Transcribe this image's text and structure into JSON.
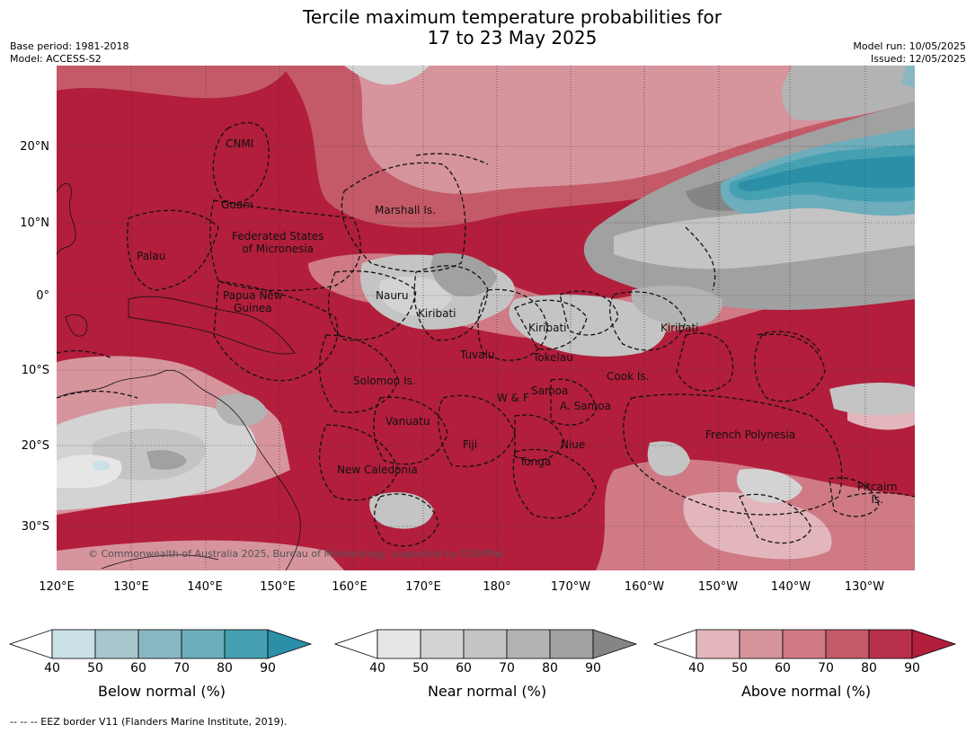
{
  "header": {
    "title_line1": "Tercile maximum temperature probabilities for",
    "title_line2": "17 to 23 May 2025",
    "base_period": "Base period: 1981-2018",
    "model": "Model: ACCESS-S2",
    "model_run": "Model run: 10/05/2025",
    "issued": "Issued: 12/05/2025"
  },
  "axes": {
    "lat_labels": [
      "20°N",
      "10°N",
      "0°",
      "10°S",
      "20°S",
      "30°S"
    ],
    "lon_labels": [
      "120°E",
      "130°E",
      "140°E",
      "150°E",
      "160°E",
      "170°E",
      "180°",
      "170°W",
      "160°W",
      "150°W",
      "140°W",
      "130°W"
    ]
  },
  "places": {
    "cnmi": "CNMI",
    "guam": "Guam",
    "marshall": "Marshall Is.",
    "fsm_1": "Federated States",
    "fsm_2": "of Micronesia",
    "palau": "Palau",
    "png_1": "Papua New",
    "png_2": "Guinea",
    "nauru": "Nauru",
    "kiribati_w": "Kiribati",
    "kiribati_c": "Kiribati",
    "kiribati_e": "Kiribati",
    "tuvalu": "Tuvalu",
    "tokelau": "Tokelau",
    "cook": "Cook Is.",
    "solomon": "Solomon Is.",
    "samoa": "Samoa",
    "wf": "W & F",
    "asamoa": "A. Samoa",
    "vanuatu": "Vanuatu",
    "fiji": "Fiji",
    "niue": "Niue",
    "tonga": "Tonga",
    "french_polynesia": "French Polynesia",
    "new_caledonia": "New Caledonia",
    "pitcairn_1": "Pitcairn",
    "pitcairn_2": "Is."
  },
  "copyright": "© Commonwealth of Australia 2025, Bureau of Meteorology, supported by COSPPac",
  "colorbars": [
    {
      "label": "Below normal (%)",
      "ticks": [
        "40",
        "50",
        "60",
        "70",
        "80",
        "90"
      ],
      "colors": [
        "#c9e1e7",
        "#a7c7cd",
        "#89b7c1",
        "#6dadbc",
        "#45a1b2",
        "#2b8fa7"
      ]
    },
    {
      "label": "Near normal (%)",
      "ticks": [
        "40",
        "50",
        "60",
        "70",
        "80",
        "90"
      ],
      "colors": [
        "#e6e6e6",
        "#d3d3d3",
        "#c4c4c4",
        "#b3b3b3",
        "#a1a1a1",
        "#858585"
      ]
    },
    {
      "label": "Above normal (%)",
      "ticks": [
        "40",
        "50",
        "60",
        "70",
        "80",
        "90"
      ],
      "colors": [
        "#e2b6bc",
        "#d6949d",
        "#cf7a84",
        "#c45a68",
        "#b8304a",
        "#b21e3c"
      ]
    }
  ],
  "colors": {
    "above_dominant": "#b21e3c",
    "below_dominant": "#2b8fa7",
    "near_dominant": "#a1a1a1"
  },
  "footnote": "-- -- -- EEZ border V11 (Flanders Marine Institute, 2019)."
}
